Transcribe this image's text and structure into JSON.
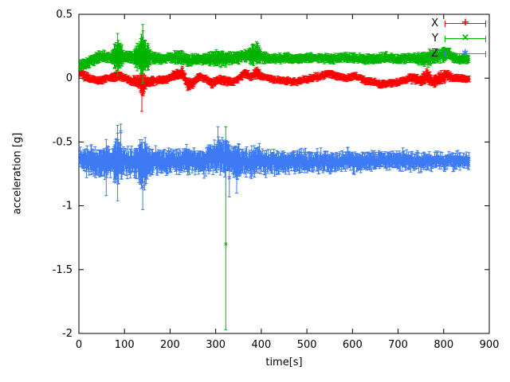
{
  "chart_data": {
    "type": "scatter",
    "title": "",
    "xlabel": "time[s]",
    "ylabel": "acceleration [g]",
    "xlim": [
      0,
      900
    ],
    "ylim": [
      -2,
      0.5
    ],
    "grid": false,
    "x_ticks": [
      "0",
      "100",
      "200",
      "300",
      "400",
      "500",
      "600",
      "700",
      "800",
      "900"
    ],
    "x_tick_values": [
      0,
      100,
      200,
      300,
      400,
      500,
      600,
      700,
      800,
      900
    ],
    "y_ticks": [
      "0.5",
      "0",
      "-0.5",
      "-1",
      "-1.5",
      "-2"
    ],
    "y_tick_values": [
      0.5,
      0,
      -0.5,
      -1,
      -1.5,
      -2
    ],
    "legend": {
      "position": "top-right",
      "entries": [
        "X",
        "Y",
        "Z"
      ]
    },
    "series": [
      {
        "name": "X",
        "color": "#ff0000",
        "marker": "plus",
        "noise_sd": 0.015,
        "sample_step": 1.2,
        "x_start": 2,
        "x_end": 856,
        "anchors": [
          [
            2,
            0.06,
            0.05
          ],
          [
            12,
            0.02,
            0.04
          ],
          [
            25,
            -0.01,
            0.03
          ],
          [
            45,
            -0.02,
            0.03
          ],
          [
            65,
            0.0,
            0.03
          ],
          [
            85,
            0.02,
            0.04
          ],
          [
            100,
            0.0,
            0.03
          ],
          [
            115,
            -0.02,
            0.03
          ],
          [
            130,
            -0.03,
            0.05
          ],
          [
            140,
            -0.05,
            0.1
          ],
          [
            150,
            -0.03,
            0.04
          ],
          [
            170,
            -0.02,
            0.03
          ],
          [
            190,
            -0.01,
            0.03
          ],
          [
            210,
            0.02,
            0.04
          ],
          [
            228,
            0.04,
            0.05
          ],
          [
            238,
            -0.05,
            0.05
          ],
          [
            250,
            -0.04,
            0.04
          ],
          [
            262,
            0.01,
            0.03
          ],
          [
            278,
            0.0,
            0.03
          ],
          [
            292,
            -0.04,
            0.04
          ],
          [
            305,
            -0.01,
            0.03
          ],
          [
            320,
            -0.02,
            0.04
          ],
          [
            338,
            -0.03,
            0.03
          ],
          [
            352,
            0.0,
            0.03
          ],
          [
            364,
            0.04,
            0.04
          ],
          [
            376,
            0.01,
            0.03
          ],
          [
            390,
            0.05,
            0.05
          ],
          [
            402,
            0.01,
            0.03
          ],
          [
            425,
            -0.01,
            0.03
          ],
          [
            450,
            -0.02,
            0.03
          ],
          [
            475,
            -0.03,
            0.03
          ],
          [
            500,
            -0.01,
            0.03
          ],
          [
            525,
            0.01,
            0.03
          ],
          [
            548,
            0.04,
            0.03
          ],
          [
            565,
            0.02,
            0.03
          ],
          [
            585,
            0.0,
            0.03
          ],
          [
            605,
            0.02,
            0.03
          ],
          [
            622,
            -0.01,
            0.03
          ],
          [
            642,
            -0.03,
            0.03
          ],
          [
            662,
            -0.05,
            0.03
          ],
          [
            682,
            -0.04,
            0.03
          ],
          [
            702,
            -0.03,
            0.03
          ],
          [
            718,
            -0.01,
            0.03
          ],
          [
            735,
            0.0,
            0.04
          ],
          [
            750,
            -0.02,
            0.04
          ],
          [
            763,
            0.02,
            0.06
          ],
          [
            778,
            -0.03,
            0.05
          ],
          [
            792,
            0.0,
            0.06
          ],
          [
            806,
            0.02,
            0.05
          ],
          [
            822,
            0.0,
            0.03
          ],
          [
            840,
            0.0,
            0.03
          ],
          [
            856,
            -0.01,
            0.03
          ]
        ],
        "outliers": [
          {
            "x": 138,
            "y": -0.06,
            "lo": -0.26,
            "hi": 0.06
          }
        ]
      },
      {
        "name": "Y",
        "color": "#00b400",
        "marker": "cross",
        "noise_sd": 0.015,
        "sample_step": 1.2,
        "x_start": 2,
        "x_end": 856,
        "anchors": [
          [
            2,
            0.1,
            0.05
          ],
          [
            12,
            0.11,
            0.04
          ],
          [
            25,
            0.13,
            0.05
          ],
          [
            40,
            0.16,
            0.05
          ],
          [
            55,
            0.17,
            0.05
          ],
          [
            70,
            0.16,
            0.05
          ],
          [
            85,
            0.18,
            0.16
          ],
          [
            100,
            0.17,
            0.05
          ],
          [
            120,
            0.16,
            0.05
          ],
          [
            140,
            0.18,
            0.22
          ],
          [
            158,
            0.16,
            0.05
          ],
          [
            180,
            0.15,
            0.04
          ],
          [
            200,
            0.16,
            0.04
          ],
          [
            220,
            0.17,
            0.06
          ],
          [
            240,
            0.14,
            0.05
          ],
          [
            260,
            0.15,
            0.04
          ],
          [
            280,
            0.15,
            0.05
          ],
          [
            300,
            0.16,
            0.07
          ],
          [
            322,
            0.15,
            0.06
          ],
          [
            340,
            0.16,
            0.05
          ],
          [
            360,
            0.17,
            0.05
          ],
          [
            378,
            0.18,
            0.08
          ],
          [
            390,
            0.2,
            0.1
          ],
          [
            402,
            0.16,
            0.05
          ],
          [
            425,
            0.15,
            0.04
          ],
          [
            450,
            0.16,
            0.04
          ],
          [
            475,
            0.15,
            0.04
          ],
          [
            500,
            0.16,
            0.04
          ],
          [
            525,
            0.16,
            0.04
          ],
          [
            550,
            0.15,
            0.04
          ],
          [
            575,
            0.16,
            0.04
          ],
          [
            600,
            0.16,
            0.04
          ],
          [
            625,
            0.15,
            0.04
          ],
          [
            650,
            0.15,
            0.04
          ],
          [
            675,
            0.16,
            0.04
          ],
          [
            700,
            0.15,
            0.04
          ],
          [
            725,
            0.16,
            0.04
          ],
          [
            750,
            0.15,
            0.05
          ],
          [
            765,
            0.15,
            0.07
          ],
          [
            780,
            0.17,
            0.05
          ],
          [
            798,
            0.18,
            0.06
          ],
          [
            810,
            0.2,
            0.05
          ],
          [
            822,
            0.16,
            0.04
          ],
          [
            840,
            0.15,
            0.04
          ],
          [
            856,
            0.15,
            0.04
          ]
        ],
        "outliers": [
          {
            "x": 322,
            "y": -1.3,
            "lo": -1.97,
            "hi": -0.38
          },
          {
            "x": 85,
            "y": 0.18,
            "lo": 0.02,
            "hi": 0.35
          },
          {
            "x": 140,
            "y": 0.19,
            "lo": -0.04,
            "hi": 0.42
          }
        ]
      },
      {
        "name": "Z",
        "color": "#3d7bf5",
        "marker": "asterisk",
        "noise_sd": 0.05,
        "sample_step": 1.2,
        "x_start": 2,
        "x_end": 856,
        "anchors": [
          [
            2,
            -0.62,
            0.06
          ],
          [
            12,
            -0.65,
            0.09
          ],
          [
            25,
            -0.65,
            0.12
          ],
          [
            40,
            -0.66,
            0.11
          ],
          [
            55,
            -0.65,
            0.12
          ],
          [
            70,
            -0.66,
            0.13
          ],
          [
            85,
            -0.65,
            0.2
          ],
          [
            98,
            -0.66,
            0.12
          ],
          [
            112,
            -0.65,
            0.12
          ],
          [
            126,
            -0.66,
            0.12
          ],
          [
            140,
            -0.68,
            0.24
          ],
          [
            155,
            -0.66,
            0.12
          ],
          [
            172,
            -0.65,
            0.1
          ],
          [
            190,
            -0.66,
            0.1
          ],
          [
            208,
            -0.64,
            0.1
          ],
          [
            226,
            -0.66,
            0.11
          ],
          [
            244,
            -0.65,
            0.1
          ],
          [
            262,
            -0.66,
            0.1
          ],
          [
            280,
            -0.64,
            0.11
          ],
          [
            295,
            -0.62,
            0.12
          ],
          [
            308,
            -0.6,
            0.15
          ],
          [
            318,
            -0.62,
            0.14
          ],
          [
            326,
            -0.61,
            0.16
          ],
          [
            336,
            -0.64,
            0.12
          ],
          [
            348,
            -0.66,
            0.14
          ],
          [
            362,
            -0.65,
            0.1
          ],
          [
            380,
            -0.66,
            0.11
          ],
          [
            395,
            -0.64,
            0.11
          ],
          [
            412,
            -0.66,
            0.1
          ],
          [
            430,
            -0.66,
            0.09
          ],
          [
            450,
            -0.65,
            0.09
          ],
          [
            470,
            -0.66,
            0.09
          ],
          [
            490,
            -0.65,
            0.09
          ],
          [
            510,
            -0.66,
            0.08
          ],
          [
            530,
            -0.65,
            0.08
          ],
          [
            550,
            -0.66,
            0.08
          ],
          [
            570,
            -0.66,
            0.08
          ],
          [
            590,
            -0.65,
            0.08
          ],
          [
            610,
            -0.66,
            0.08
          ],
          [
            630,
            -0.65,
            0.07
          ],
          [
            650,
            -0.65,
            0.07
          ],
          [
            670,
            -0.64,
            0.07
          ],
          [
            690,
            -0.65,
            0.07
          ],
          [
            710,
            -0.64,
            0.07
          ],
          [
            730,
            -0.65,
            0.07
          ],
          [
            750,
            -0.65,
            0.07
          ],
          [
            770,
            -0.64,
            0.06
          ],
          [
            790,
            -0.65,
            0.06
          ],
          [
            810,
            -0.65,
            0.06
          ],
          [
            830,
            -0.64,
            0.06
          ],
          [
            856,
            -0.65,
            0.06
          ]
        ],
        "outliers": [
          {
            "x": 60,
            "y": -0.7,
            "lo": -0.92,
            "hi": -0.48
          },
          {
            "x": 85,
            "y": -0.55,
            "lo": -0.96,
            "hi": -0.37
          },
          {
            "x": 92,
            "y": -0.42,
            "lo": -0.55,
            "hi": -0.36
          },
          {
            "x": 140,
            "y": -0.85,
            "lo": -1.03,
            "hi": -0.62
          },
          {
            "x": 305,
            "y": -0.5,
            "lo": -0.64,
            "hi": -0.38
          },
          {
            "x": 330,
            "y": -0.78,
            "lo": -0.93,
            "hi": -0.6
          },
          {
            "x": 346,
            "y": -0.75,
            "lo": -0.9,
            "hi": -0.6
          }
        ]
      }
    ]
  }
}
